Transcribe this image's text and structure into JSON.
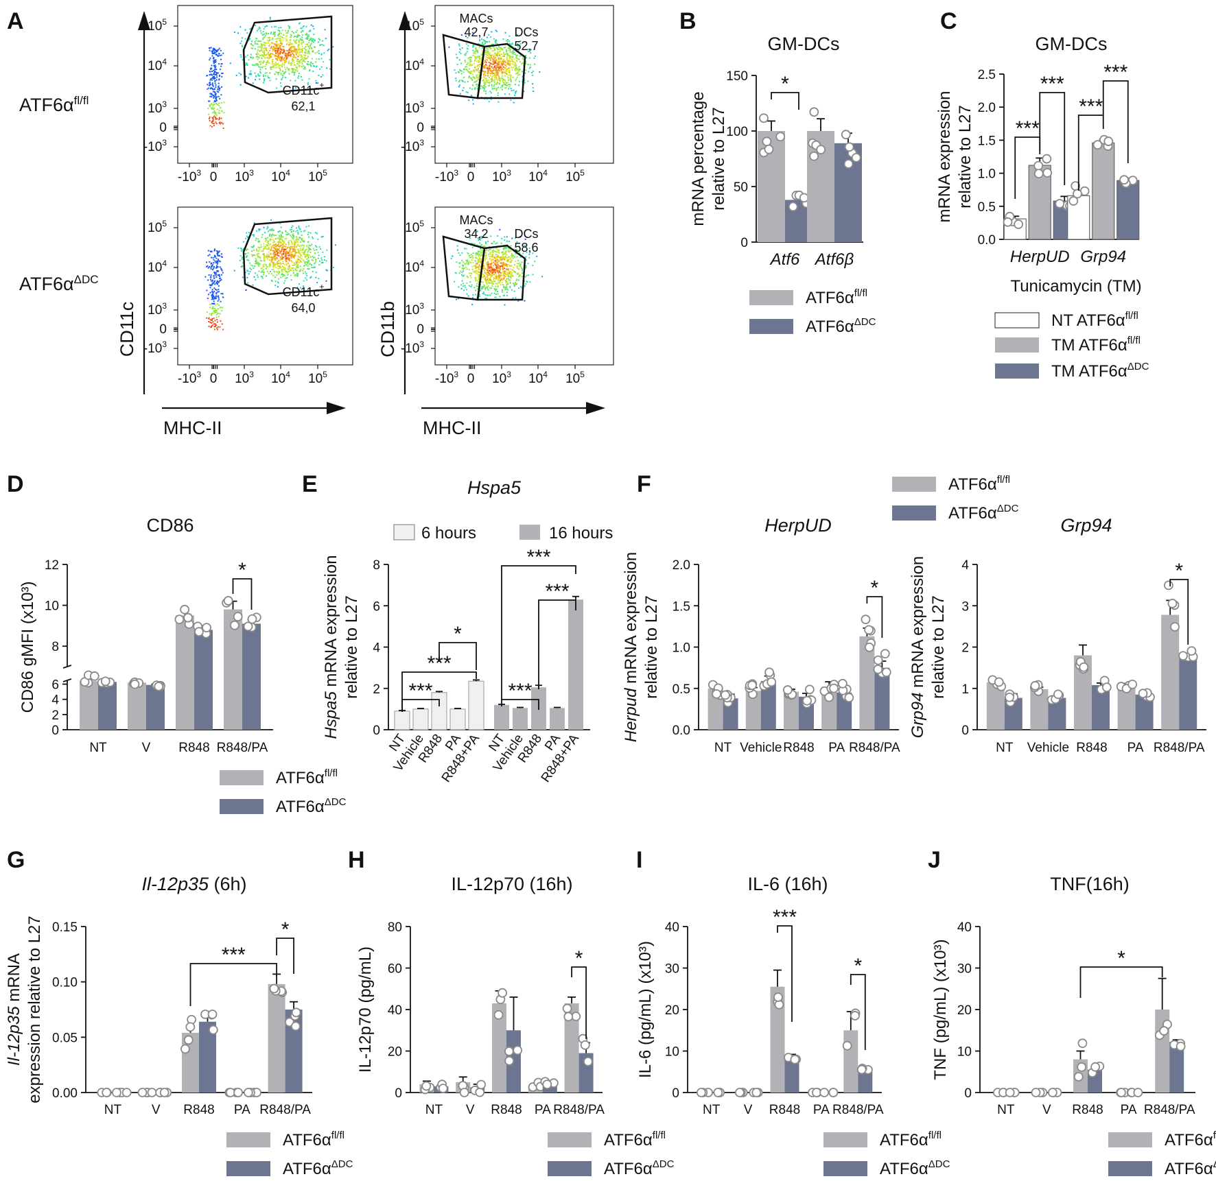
{
  "colors": {
    "flfl": "#b1b1b6",
    "ddc": "#6d7690",
    "nt": "#ffffff",
    "h6": "#f0f0f0",
    "h16": "#b1b1b6",
    "line": "#111111"
  },
  "panel_letters": [
    "A",
    "B",
    "C",
    "D",
    "E",
    "F",
    "G",
    "H",
    "I",
    "J"
  ],
  "legend": {
    "flfl_label": "ATF6α",
    "flfl_sup": "fl/fl",
    "ddc_label": "ATF6α",
    "ddc_sup": "ΔDC",
    "nt_label": "NT ATF6α",
    "tm_label": "TM ATF6α",
    "hours6": "6 hours",
    "hours16": "16 hours"
  },
  "flow": {
    "row_labels": [
      {
        "main": "ATF6α",
        "sup": "fl/fl"
      },
      {
        "main": "ATF6α",
        "sup": "ΔDC"
      }
    ],
    "ylabels": [
      "CD11c",
      "CD11b"
    ],
    "xlabel": "MHC-II",
    "y_ticks": [
      "10",
      "10",
      "10",
      "0",
      "-10"
    ],
    "y_tick_exps": [
      "5",
      "4",
      "3",
      "",
      "3"
    ],
    "x_ticks": [
      "-10",
      "0",
      "10",
      "10",
      "10"
    ],
    "x_tick_exps": [
      "3",
      "",
      "3",
      "4",
      "5"
    ],
    "plots": [
      {
        "gates": [
          {
            "name": "CD11c",
            "sup": "+",
            "value": "62,1"
          }
        ]
      },
      {
        "gates": [
          {
            "name": "MACs",
            "sup": "",
            "value": "42,7"
          },
          {
            "name": "DCs",
            "sup": "",
            "value": "52,7"
          }
        ]
      },
      {
        "gates": [
          {
            "name": "CD11c",
            "sup": "+",
            "value": "64,0"
          }
        ]
      },
      {
        "gates": [
          {
            "name": "MACs",
            "sup": "",
            "value": "34,2"
          },
          {
            "name": "DCs",
            "sup": "",
            "value": "58,6"
          }
        ]
      }
    ]
  },
  "chart_data": [
    {
      "panel": "B",
      "type": "bar",
      "title": "GM-DCs",
      "ylabel": [
        "mRNA percentage",
        "relative to L27"
      ],
      "categories": [
        "Atf6",
        "Atf6β"
      ],
      "ylim": [
        0,
        150
      ],
      "yticks": [
        0,
        50,
        100,
        150
      ],
      "series": [
        {
          "name": "ATF6α fl/fl",
          "values": [
            100,
            100
          ],
          "errors": [
            9,
            11
          ]
        },
        {
          "name": "ATF6α ΔDC",
          "values": [
            38,
            89
          ],
          "errors": [
            3,
            9
          ]
        }
      ],
      "significance": [
        {
          "label": "*",
          "between": "fl/fl vs ΔDC, Atf6"
        }
      ]
    },
    {
      "panel": "C",
      "type": "bar",
      "title": "GM-DCs",
      "ylabel": [
        "mRNA expression",
        "relative to L27"
      ],
      "xlabel": "Tunicamycin (TM)",
      "categories": [
        "HerpUD",
        "Grp94"
      ],
      "ylim": [
        0,
        2.5
      ],
      "yticks": [
        "0.0",
        "0.5",
        "1.0",
        "1.5",
        "2.0",
        "2.5"
      ],
      "series": [
        {
          "name": "NT ATF6α fl/fl",
          "values": [
            0.31,
            0.66
          ],
          "errors": [
            0.04,
            0.08
          ]
        },
        {
          "name": "TM ATF6α fl/fl",
          "values": [
            1.12,
            1.46
          ],
          "errors": [
            0.11,
            0.05
          ]
        },
        {
          "name": "TM ATF6α ΔDC",
          "values": [
            0.58,
            0.89
          ],
          "errors": [
            0.07,
            0.02
          ]
        }
      ],
      "significance": [
        {
          "label": "***",
          "between": "NT vs TM fl/fl, HerpUD"
        },
        {
          "label": "***",
          "between": "TM fl/fl vs TM ΔDC, HerpUD"
        },
        {
          "label": "***",
          "between": "NT vs TM fl/fl, Grp94"
        },
        {
          "label": "***",
          "between": "TM fl/fl vs TM ΔDC, Grp94"
        }
      ]
    },
    {
      "panel": "D",
      "type": "bar",
      "title": "CD86",
      "ylabel": [
        "CD86 gMFI (x10³)"
      ],
      "categories": [
        "NT",
        "V",
        "R848",
        "R848/PA"
      ],
      "ylim": [
        0,
        12
      ],
      "axis_break": [
        6.5,
        7
      ],
      "yticks": [
        0,
        2,
        4,
        6,
        8,
        10,
        12
      ],
      "series": [
        {
          "name": "ATF6α fl/fl",
          "values": [
            6.4,
            6.2,
            9.5,
            9.8
          ],
          "errors": [
            0.2,
            0.1,
            0.2,
            0.4
          ]
        },
        {
          "name": "ATF6α ΔDC",
          "values": [
            6.3,
            5.9,
            8.8,
            9.1
          ],
          "errors": [
            0.1,
            0.1,
            0.2,
            0.2
          ]
        }
      ],
      "significance": [
        {
          "label": "*",
          "between": "fl/fl vs ΔDC, R848/PA"
        }
      ]
    },
    {
      "panel": "E",
      "type": "bar",
      "title": "Hspa5",
      "ylabel": [
        "Hspa5 mRNA expression",
        "relative to L27"
      ],
      "ylim": [
        0,
        8
      ],
      "yticks": [
        0,
        2,
        4,
        6,
        8
      ],
      "categories": [
        "NT",
        "Vehicle",
        "R848",
        "PA",
        "R848+PA"
      ],
      "series": [
        {
          "name": "6 hours",
          "values": [
            0.9,
            1.0,
            1.8,
            1.0,
            2.35
          ],
          "errors": [
            0.03,
            0.03,
            0.05,
            0.03,
            0.06
          ]
        },
        {
          "name": "16 hours",
          "values": [
            1.2,
            1.05,
            2.05,
            1.05,
            6.3
          ],
          "errors": [
            0.03,
            0.03,
            0.1,
            0.03,
            0.15
          ]
        }
      ],
      "significance": [
        {
          "label": "***",
          "between": "6h NT vs R848"
        },
        {
          "label": "***",
          "between": "6h NT vs R848+PA"
        },
        {
          "label": "*",
          "between": "6h R848 vs R848+PA"
        },
        {
          "label": "***",
          "between": "16h NT vs R848"
        },
        {
          "label": "***",
          "between": "16h NT vs R848+PA"
        },
        {
          "label": "***",
          "between": "16h R848 vs R848+PA"
        }
      ]
    },
    {
      "panel": "F1",
      "type": "bar",
      "title": "HerpUD",
      "ylabel": [
        "Herpud mRNA expression",
        "relative to L27"
      ],
      "categories": [
        "NT",
        "Vehicle",
        "R848",
        "PA",
        "R848/PA"
      ],
      "ylim": [
        0,
        2.0
      ],
      "yticks": [
        "0.0",
        "0.5",
        "1.0",
        "1.5",
        "2.0"
      ],
      "series": [
        {
          "name": "ATF6α fl/fl",
          "values": [
            0.5,
            0.47,
            0.46,
            0.52,
            1.13
          ],
          "errors": [
            0.04,
            0.04,
            0.03,
            0.06,
            0.1
          ]
        },
        {
          "name": "ATF6α ΔDC",
          "values": [
            0.38,
            0.59,
            0.4,
            0.45,
            0.75
          ],
          "errors": [
            0.05,
            0.06,
            0.04,
            0.05,
            0.08
          ]
        }
      ],
      "significance": [
        {
          "label": "*",
          "between": "fl/fl vs ΔDC, R848/PA"
        }
      ]
    },
    {
      "panel": "F2",
      "type": "bar",
      "title": "Grp94",
      "ylabel": [
        "Grp94 mRNA expression",
        "relative to L27"
      ],
      "categories": [
        "NT",
        "Vehicle",
        "R848",
        "PA",
        "R848/PA"
      ],
      "ylim": [
        0,
        4
      ],
      "yticks": [
        0,
        1,
        2,
        3,
        4
      ],
      "series": [
        {
          "name": "ATF6α fl/fl",
          "values": [
            1.15,
            0.98,
            1.8,
            1.08,
            2.78
          ],
          "errors": [
            0.05,
            0.05,
            0.25,
            0.04,
            0.35
          ]
        },
        {
          "name": "ATF6α ΔDC",
          "values": [
            0.77,
            0.77,
            1.08,
            0.85,
            1.8
          ],
          "errors": [
            0.1,
            0.05,
            0.05,
            0.05,
            0.05
          ]
        }
      ],
      "significance": [
        {
          "label": "*",
          "between": "fl/fl vs ΔDC, R848/PA"
        }
      ]
    },
    {
      "panel": "G",
      "type": "bar",
      "title": "Il-12p35 (6h)",
      "ylabel": [
        "Il-12p35 mRNA",
        "expression relative to L27"
      ],
      "categories": [
        "NT",
        "V",
        "R848",
        "PA",
        "R848/PA"
      ],
      "ylim": [
        0,
        0.15
      ],
      "yticks": [
        "0.00",
        "0.05",
        "0.10",
        "0.15"
      ],
      "series": [
        {
          "name": "ATF6α fl/fl",
          "values": [
            0,
            0,
            0.054,
            0,
            0.098
          ],
          "errors": [
            0,
            0,
            0.007,
            0,
            0.009
          ]
        },
        {
          "name": "ATF6α ΔDC",
          "values": [
            0,
            0,
            0.064,
            0,
            0.075
          ],
          "errors": [
            0,
            0,
            0.008,
            0,
            0.007
          ]
        }
      ],
      "significance": [
        {
          "label": "***",
          "between": "fl/fl R848 vs fl/fl R848/PA"
        },
        {
          "label": "*",
          "between": "fl/fl vs ΔDC, R848/PA"
        }
      ]
    },
    {
      "panel": "H",
      "type": "bar",
      "title": "IL-12p70 (16h)",
      "ylabel": [
        "IL-12p70 (pg/mL)"
      ],
      "categories": [
        "NT",
        "V",
        "R848",
        "PA",
        "R848/PA"
      ],
      "ylim": [
        0,
        80
      ],
      "yticks": [
        0,
        20,
        40,
        60,
        80
      ],
      "series": [
        {
          "name": "ATF6α fl/fl",
          "values": [
            4,
            5,
            43,
            3.5,
            43
          ],
          "errors": [
            1.5,
            2.5,
            6,
            1,
            3
          ]
        },
        {
          "name": "ATF6α ΔDC",
          "values": [
            3,
            2.5,
            30,
            5,
            19
          ],
          "errors": [
            0.5,
            1.5,
            16,
            0.5,
            5
          ]
        }
      ],
      "significance": [
        {
          "label": "*",
          "between": "fl/fl vs ΔDC, R848/PA"
        }
      ]
    },
    {
      "panel": "I",
      "type": "bar",
      "title": "IL-6 (16h)",
      "ylabel": [
        "IL-6 (pg/mL) (x10³)"
      ],
      "categories": [
        "NT",
        "V",
        "R848",
        "PA",
        "R848/PA"
      ],
      "ylim": [
        0,
        40
      ],
      "yticks": [
        0,
        10,
        20,
        30,
        40
      ],
      "series": [
        {
          "name": "ATF6α fl/fl",
          "values": [
            0,
            0,
            25.5,
            0,
            15
          ],
          "errors": [
            0,
            0,
            4,
            0,
            4.5
          ]
        },
        {
          "name": "ATF6α ΔDC",
          "values": [
            0,
            0,
            8.8,
            0,
            5.8
          ],
          "errors": [
            0,
            0,
            0.4,
            0,
            0.4
          ]
        }
      ],
      "significance": [
        {
          "label": "***",
          "between": "fl/fl vs ΔDC, R848"
        },
        {
          "label": "*",
          "between": "fl/fl vs ΔDC, R848/PA"
        }
      ]
    },
    {
      "panel": "J",
      "type": "bar",
      "title": "TNF(16h)",
      "ylabel": [
        "TNF  (pg/mL) (x10³)"
      ],
      "categories": [
        "NT",
        "V",
        "R848",
        "PA",
        "R848/PA"
      ],
      "ylim": [
        0,
        40
      ],
      "yticks": [
        0,
        10,
        20,
        30,
        40
      ],
      "series": [
        {
          "name": "ATF6α fl/fl",
          "values": [
            0,
            0,
            8,
            0,
            20
          ],
          "errors": [
            0,
            0,
            2,
            0,
            7.5
          ]
        },
        {
          "name": "ATF6α ΔDC",
          "values": [
            0,
            0,
            5.5,
            0,
            12.2
          ],
          "errors": [
            0,
            0,
            0.8,
            0,
            0.5
          ]
        }
      ],
      "significance": [
        {
          "label": "*",
          "between": "fl/fl R848 vs fl/fl R848/PA"
        }
      ]
    }
  ]
}
